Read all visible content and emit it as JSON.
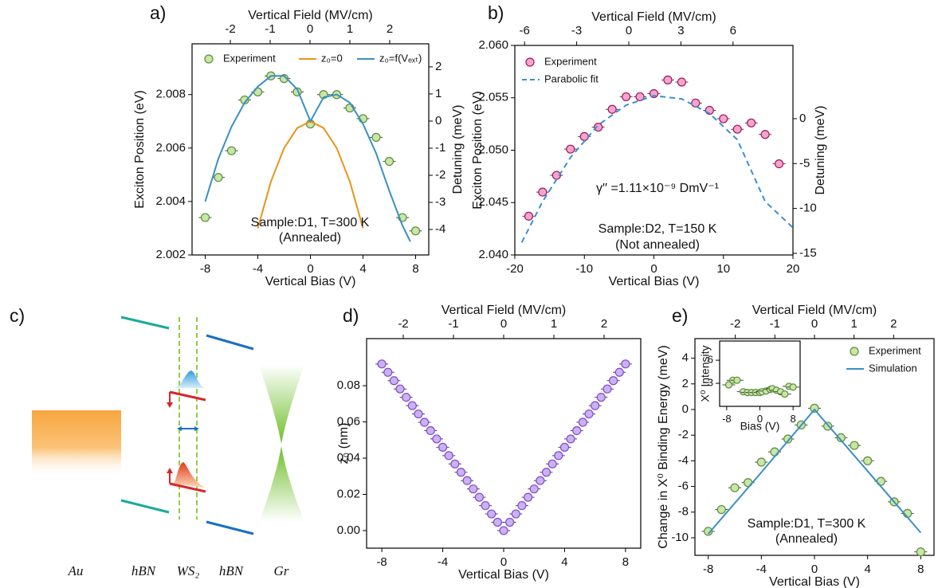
{
  "chart_data": [
    {
      "type": "scatter",
      "panel": "a)",
      "x_label": "Vertical Bias (V)",
      "x2_label": "Vertical Field (MV/cm)",
      "y_label": "Exciton Position (eV)",
      "y2_label": "Detuning (meV)",
      "xlim": [
        -9,
        9
      ],
      "xticks": [
        -8,
        -4,
        0,
        4,
        8
      ],
      "x2lim": [
        -2.96,
        2.98
      ],
      "x2ticks": [
        -2,
        -1,
        0,
        1,
        2
      ],
      "ylim": [
        2.002,
        2.0099
      ],
      "yticks": [
        2.002,
        2.004,
        2.006,
        2.008
      ],
      "y2lim": [
        -4.94,
        2.85
      ],
      "y2ticks": [
        -4,
        -3,
        -2,
        -1,
        0,
        1,
        2
      ],
      "legend": "top",
      "series": [
        {
          "name": "Experiment",
          "style": "markers",
          "color": "#c8e6a8",
          "edge": "#5b8c3b",
          "x": [
            -8,
            -7,
            -6,
            -5,
            -4,
            -3,
            -2,
            -1,
            0,
            1,
            2,
            3,
            4,
            5,
            6,
            7,
            8
          ],
          "values": [
            2.0034,
            2.0049,
            2.0059,
            2.0078,
            2.0081,
            2.0087,
            2.0086,
            2.0081,
            2.0069,
            2.008,
            2.008,
            2.0075,
            2.0071,
            2.0064,
            2.0055,
            2.0034,
            2.0029
          ]
        },
        {
          "name": "z₀=0",
          "style": "line",
          "color": "#e8941a",
          "x": [
            -4,
            -3,
            -2,
            -1,
            0,
            1,
            2,
            3,
            4
          ],
          "values": [
            2.003,
            2.00475,
            2.006,
            2.00675,
            2.007,
            2.00675,
            2.006,
            2.00475,
            2.003
          ]
        },
        {
          "name": "z₀=f(Vₑₓₜ)",
          "style": "line",
          "color": "#3a8fc4",
          "x": [
            -8,
            -7,
            -6,
            -5,
            -4,
            -3,
            -2,
            -1,
            0,
            1,
            2,
            3,
            4,
            5,
            6,
            7,
            7.6
          ],
          "values": [
            2.004,
            2.0056,
            2.0068,
            2.0077,
            2.0083,
            2.0087,
            2.0087,
            2.0082,
            2.007,
            2.0079,
            2.008,
            2.0077,
            2.0069,
            2.0058,
            2.0044,
            2.0031,
            2.0025
          ]
        }
      ],
      "annotations": [
        "Sample:D1, T=300 K",
        "(Annealed)"
      ]
    },
    {
      "type": "scatter",
      "panel": "b)",
      "x_label": "Vertical Bias (V)",
      "x2_label": "Vertical Field (MV/cm)",
      "y_label": "Exciton Position (eV)",
      "y2_label": "Detuning (meV)",
      "xlim": [
        -20,
        20
      ],
      "xticks": [
        -20,
        -10,
        0,
        10,
        20
      ],
      "x2lim": [
        -6.56,
        9.45
      ],
      "x2ticks": [
        -6,
        -3,
        0,
        3,
        6
      ],
      "ylim": [
        2.04,
        2.06
      ],
      "yticks": [
        {
          "value": 2.04,
          "label": "2.040"
        },
        2.045,
        {
          "value": 2.05,
          "label": "2.050"
        },
        2.055,
        {
          "value": 2.06,
          "label": "2.060"
        }
      ],
      "y2lim": [
        -15.18,
        8.16
      ],
      "y2ticks": [
        -15,
        -10,
        -5,
        0
      ],
      "legend": "upper left",
      "series": [
        {
          "name": "Experiment",
          "style": "markers",
          "color": "#f2a6cc",
          "edge": "#a3145e",
          "x": [
            -18,
            -16,
            -14,
            -12,
            -10,
            -8,
            -6,
            -4,
            -2,
            0,
            2,
            4,
            6,
            8,
            10,
            12,
            14,
            16,
            18
          ],
          "values": [
            2.0437,
            2.046,
            2.0476,
            2.0501,
            2.0513,
            2.0522,
            2.0539,
            2.0551,
            2.0551,
            2.0554,
            2.0567,
            2.0565,
            2.0545,
            2.0538,
            2.053,
            2.052,
            2.0526,
            2.0515,
            2.0487
          ]
        },
        {
          "name": "Parabolic fit",
          "style": "dashed",
          "color": "#3a8fd6",
          "x": [
            -19,
            -16,
            -12,
            -8,
            -4,
            0,
            4,
            8,
            12,
            16,
            20
          ],
          "values": [
            2.0412,
            2.0451,
            2.0493,
            2.0524,
            2.0543,
            2.0552,
            2.0549,
            2.0535,
            2.051,
            2.0451,
            2.0426
          ]
        }
      ],
      "annotations": [
        "γ′′ =1.11×10⁻⁹ DmV⁻¹",
        "Sample:D2, T=150 K",
        "(Not annealed)"
      ]
    },
    {
      "type": "scatter",
      "panel": "d)",
      "x_label": "Vertical Bias (V)",
      "x2_label": "Vertical Field (MV/cm)",
      "y_label": "z₀ (nm)",
      "xlim": [
        -9,
        9
      ],
      "xticks": [
        -8,
        -4,
        0,
        4,
        8
      ],
      "x2lim": [
        -2.73,
        2.73
      ],
      "x2ticks": [
        -2,
        -1,
        0,
        1,
        2
      ],
      "ylim": [
        -0.0097,
        0.106
      ],
      "yticks": [
        {
          "value": 0,
          "label": "0.00"
        },
        0.02,
        0.04,
        0.06,
        0.08
      ],
      "series": [
        {
          "style": "markers",
          "color": "#cdb0f2",
          "edge": "#7a4ccf",
          "x": [
            -8,
            -7.6,
            -7.2,
            -6.8,
            -6.4,
            -6,
            -5.6,
            -5.2,
            -4.8,
            -4.4,
            -4,
            -3.6,
            -3.2,
            -2.8,
            -2.4,
            -2,
            -1.6,
            -1.2,
            -0.8,
            -0.4,
            0,
            0.4,
            0.8,
            1.2,
            1.6,
            2,
            2.4,
            2.8,
            3.2,
            3.6,
            4,
            4.4,
            4.8,
            5.2,
            5.6,
            6,
            6.4,
            6.8,
            7.2,
            7.6,
            8
          ],
          "values": [
            0.092,
            0.0874,
            0.0828,
            0.0782,
            0.0736,
            0.069,
            0.0644,
            0.0598,
            0.0552,
            0.0506,
            0.046,
            0.0414,
            0.0368,
            0.0322,
            0.0276,
            0.023,
            0.0184,
            0.0138,
            0.0092,
            0.0046,
            0,
            0.0046,
            0.0092,
            0.0138,
            0.0184,
            0.023,
            0.0276,
            0.0322,
            0.0368,
            0.0414,
            0.046,
            0.0506,
            0.0552,
            0.0598,
            0.0644,
            0.069,
            0.0736,
            0.0782,
            0.0828,
            0.0874,
            0.092
          ]
        }
      ]
    },
    {
      "type": "scatter",
      "panel": "e)",
      "x_label": "Vertical Bias (V)",
      "x2_label": "Vertical Field (MV/cm)",
      "y_label": "Change in X⁰ Binding Energy (meV)",
      "xlim": [
        -9,
        9
      ],
      "xticks": [
        -8,
        -4,
        0,
        4,
        8
      ],
      "x2lim": [
        -3.02,
        3.02
      ],
      "x2ticks": [
        -2,
        -1,
        0,
        1,
        2
      ],
      "ylim": [
        -11.37,
        5.53
      ],
      "yticks": [
        -10,
        -8,
        -6,
        -4,
        -2,
        0,
        2,
        4
      ],
      "legend": "upper right",
      "series": [
        {
          "name": "Experiment",
          "style": "markers",
          "color": "#c8e6a8",
          "edge": "#5b8c3b",
          "x": [
            -8,
            -7,
            -6,
            -5,
            -4,
            -3,
            -2,
            -1,
            0,
            1,
            2,
            3,
            4,
            5,
            6,
            7,
            8
          ],
          "values": [
            -9.5,
            -7.8,
            -6.1,
            -5.7,
            -4.1,
            -3.3,
            -2.3,
            -1.2,
            0.1,
            -1.3,
            -2.2,
            -2.8,
            -4.0,
            -5.6,
            -7.2,
            -8.1,
            -11.1
          ]
        },
        {
          "name": "Simulation",
          "style": "line",
          "color": "#3a8fc4",
          "x": [
            -8,
            -4,
            0,
            4,
            8
          ],
          "values": [
            -9.7,
            -4.9,
            0,
            -4.8,
            -9.6
          ]
        }
      ],
      "annotations": [
        "Sample:D1, T=300 K",
        "(Annealed)"
      ],
      "inset": {
        "x_label": "Bias (V)",
        "y_label": "X⁰ Intensity",
        "xlim": [
          -9.7,
          9.7
        ],
        "xticks": [
          -8,
          0,
          8
        ],
        "ylim": [
          0,
          8.5
        ],
        "yticks": [
          3,
          6
        ],
        "series": [
          {
            "style": "markers",
            "color": "#c8e6a8",
            "edge": "#5b8c3b",
            "x": [
              -7.5,
              -6.5,
              -5.5,
              -4,
              -3,
              -2,
              -1,
              0,
              0.5,
              1.5,
              2.5,
              3,
              4,
              5,
              6,
              7,
              8
            ],
            "values": [
              2.8,
              3.4,
              3.4,
              1.9,
              1.8,
              1.8,
              1.8,
              1.8,
              1.9,
              2.0,
              2.2,
              2.3,
              2.1,
              1.9,
              1.6,
              2.6,
              2.5
            ]
          }
        ]
      }
    }
  ],
  "diagram": {
    "panel": "c)",
    "layers": [
      "Au",
      "hBN",
      "WS₂",
      "hBN",
      "Gr"
    ]
  }
}
